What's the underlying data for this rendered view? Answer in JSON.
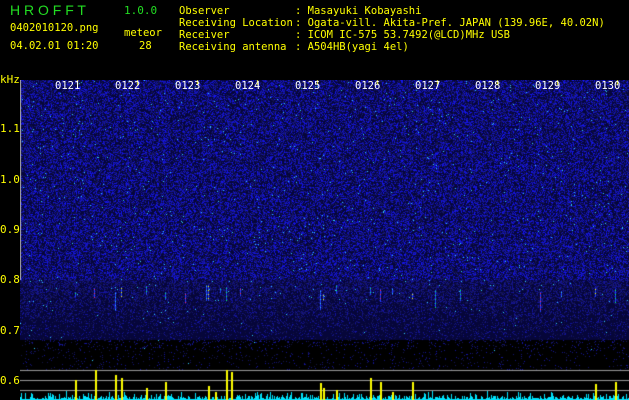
{
  "app": {
    "title": "H R O F F T",
    "version": "1.0.0"
  },
  "file": {
    "name": "0402010120.png",
    "datetime": "04.02.01 01:20"
  },
  "meteor": {
    "label": "meteor",
    "count": "28"
  },
  "info": [
    {
      "label": "Observer",
      "value": "Masayuki Kobayashi"
    },
    {
      "label": "Receiving Location",
      "value": "Ogata-vill. Akita-Pref. JAPAN (139.96E, 40.02N)"
    },
    {
      "label": "Receiver",
      "value": "ICOM IC-575 53.7492(@LCD)MHz USB"
    },
    {
      "label": "Receiving antenna",
      "value": "A504HB(yagi 4el)"
    }
  ],
  "axis": {
    "unit": "kHz",
    "y_ticks": [
      "1.1",
      "1.0",
      "0.9",
      "0.8",
      "0.7",
      "0.6"
    ],
    "time_ticks": [
      "0121",
      "0122",
      "0123",
      "0124",
      "0125",
      "0126",
      "0127",
      "0128",
      "0129",
      "0130"
    ]
  },
  "colors": {
    "title": "#22dd22",
    "text": "#ffff00",
    "noise": "#1a1aff",
    "histogram": "#00e5ff",
    "meteor_bar": "#ffff00"
  }
}
